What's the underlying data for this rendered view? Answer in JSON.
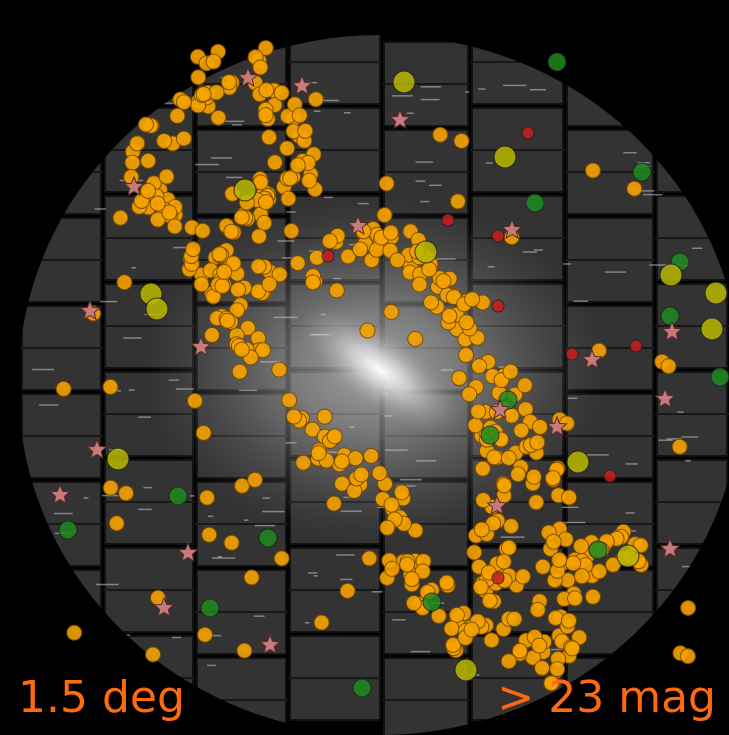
{
  "labels": {
    "scale": "1.5 deg",
    "magnitude": "> 23 mag"
  }
}
